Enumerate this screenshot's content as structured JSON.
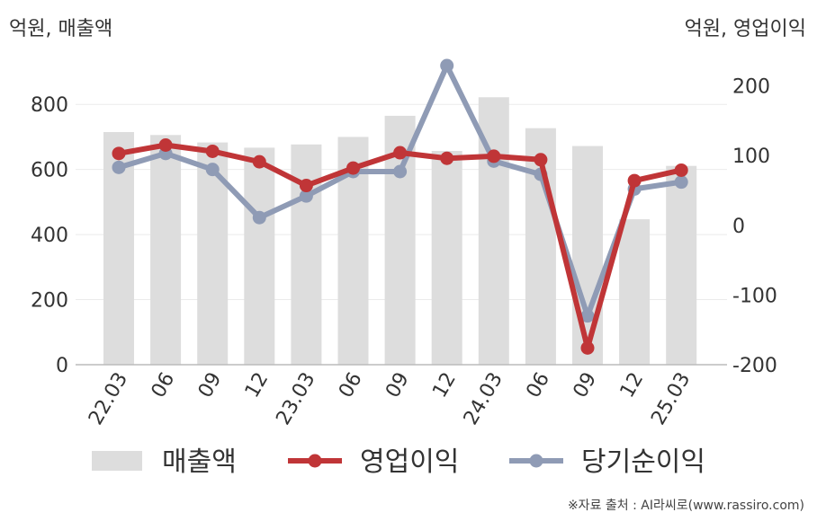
{
  "chart_data": {
    "type": "bar+line",
    "categories": [
      "22.03",
      "06",
      "09",
      "12",
      "23.03",
      "06",
      "09",
      "12",
      "24.03",
      "06",
      "09",
      "12",
      "25.03"
    ],
    "left_axis": {
      "unit_label": "억원, 매출액",
      "ylim": [
        0,
        900
      ],
      "ticks": [
        "0",
        "200",
        "400",
        "600",
        "800"
      ]
    },
    "right_axis": {
      "unit_label": "억원, 영업이익",
      "ylim": [
        -200,
        220
      ],
      "ticks": [
        "-200",
        "-100",
        "0",
        "100",
        "200"
      ]
    },
    "series": [
      {
        "name": "매출액",
        "type": "bar",
        "axis": "left",
        "color": "#dddddd",
        "values": [
          715,
          706,
          683,
          667,
          677,
          700,
          765,
          657,
          822,
          727,
          672,
          447,
          611
        ]
      },
      {
        "name": "영업이익",
        "type": "line",
        "axis": "right",
        "color": "#c03537",
        "values": [
          103,
          115,
          106,
          91,
          57,
          82,
          104,
          96,
          99,
          94,
          -176,
          64,
          79
        ]
      },
      {
        "name": "당기순이익",
        "type": "line",
        "axis": "right",
        "color": "#8f9bb5",
        "values": [
          83,
          103,
          80,
          11,
          42,
          77,
          77,
          229,
          92,
          73,
          -130,
          52,
          62
        ]
      }
    ],
    "grid": true,
    "legend_position": "bottom"
  },
  "source": "※자료 출처 : AI라씨로(www.rassiro.com)"
}
